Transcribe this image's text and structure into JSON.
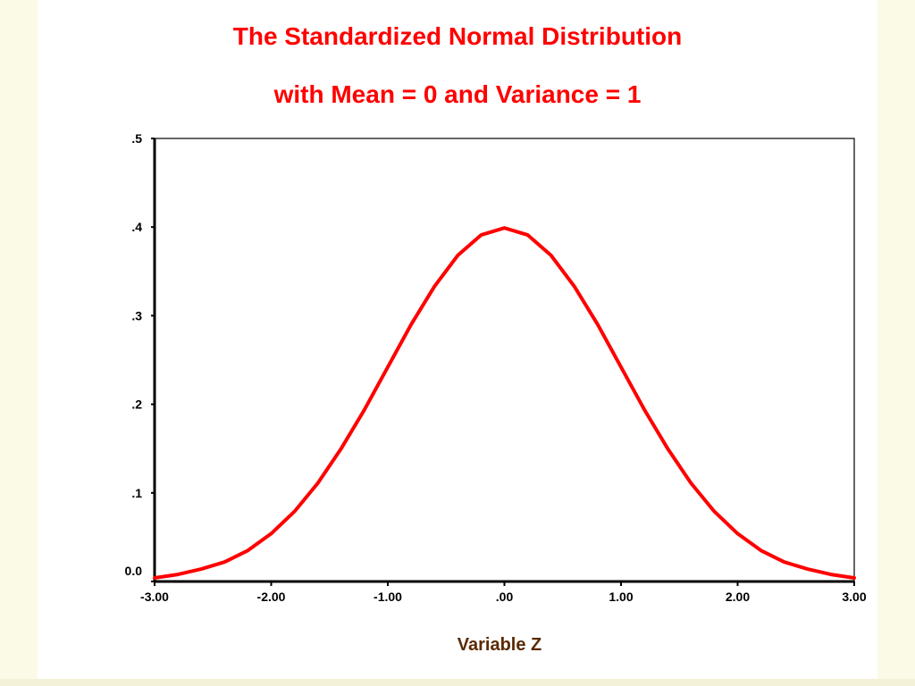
{
  "chart_data": {
    "type": "line",
    "title": "The Standardized Normal Distribution",
    "subtitle": "with Mean = 0 and Variance = 1",
    "xlabel": "Variable Z",
    "ylabel": "",
    "xlim": [
      -3,
      3
    ],
    "ylim": [
      0,
      0.5
    ],
    "x_ticks": [
      -3,
      -2,
      -1,
      0,
      1,
      2,
      3
    ],
    "x_tick_labels": [
      "-3.00",
      "-2.00",
      "-1.00",
      ".00",
      "1.00",
      "2.00",
      "3.00"
    ],
    "y_ticks": [
      0,
      0.1,
      0.2,
      0.3,
      0.4,
      0.5
    ],
    "y_tick_labels": [
      "0.0",
      ".1",
      ".2",
      ".3",
      ".4",
      ".5"
    ],
    "grid": false,
    "legend": "none",
    "series": [
      {
        "color": "#ff0000",
        "x": [
          -3.0,
          -2.8,
          -2.6,
          -2.4,
          -2.2,
          -2.0,
          -1.8,
          -1.6,
          -1.4,
          -1.2,
          -1.0,
          -0.8,
          -0.6,
          -0.4,
          -0.2,
          0.0,
          0.2,
          0.4,
          0.6,
          0.8,
          1.0,
          1.2,
          1.4,
          1.6,
          1.8,
          2.0,
          2.2,
          2.4,
          2.6,
          2.8,
          3.0
        ],
        "values": [
          0.004,
          0.008,
          0.014,
          0.022,
          0.035,
          0.054,
          0.079,
          0.111,
          0.15,
          0.194,
          0.242,
          0.29,
          0.333,
          0.368,
          0.391,
          0.399,
          0.391,
          0.368,
          0.333,
          0.29,
          0.242,
          0.194,
          0.15,
          0.111,
          0.079,
          0.054,
          0.035,
          0.022,
          0.014,
          0.008,
          0.004
        ]
      }
    ]
  },
  "colors": {
    "title": "#ff0000",
    "curve": "#ff0000",
    "axis_title": "#5a2a00",
    "background": "#fbfae6",
    "panel": "#ffffff"
  }
}
